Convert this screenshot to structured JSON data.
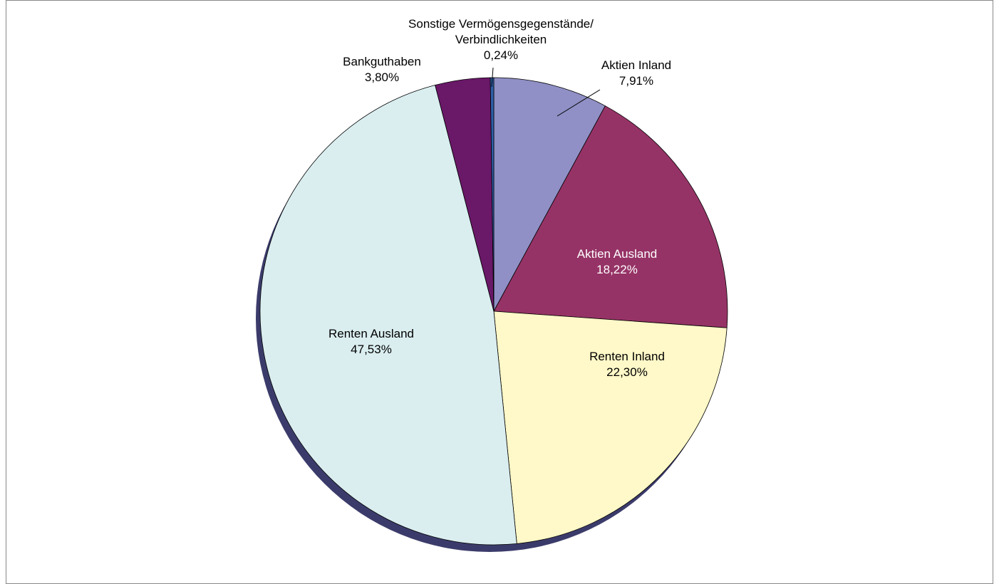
{
  "chart_data": {
    "type": "pie",
    "categories": [
      "Aktien Inland",
      "Aktien Ausland",
      "Renten Inland",
      "Renten Ausland",
      "Bankguthaben",
      "Sonstige Vermögensgegenstände/ Verbindlichkeiten"
    ],
    "values": [
      7.91,
      18.22,
      22.3,
      47.53,
      3.8,
      0.24
    ],
    "value_labels": [
      "7,91%",
      "18,22%",
      "22,30%",
      "47,53%",
      "3,80%",
      "0,24%"
    ],
    "colors": [
      "#9090c6",
      "#963366",
      "#fff8c8",
      "#daeef0",
      "#6a1868",
      "#2e5fa8"
    ]
  }
}
